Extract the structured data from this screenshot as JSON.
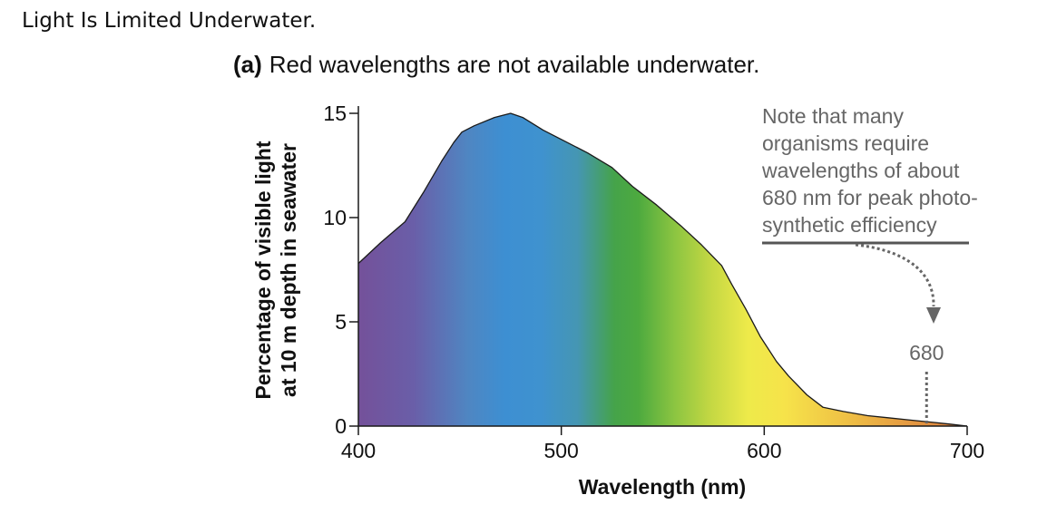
{
  "page": {
    "title": "Light Is Limited Underwater."
  },
  "figure": {
    "panel_label": "(a)",
    "subtitle": "Red wavelengths are not available underwater."
  },
  "annotation": {
    "note_lines": [
      "Note that many",
      "organisms require",
      "wavelengths of about",
      "680 nm for peak photo-",
      "synthetic efficiency"
    ],
    "marker_label": "680",
    "marker_x": 680,
    "color": "#666666"
  },
  "chart_data": {
    "type": "area",
    "xlabel": "Wavelength (nm)",
    "ylabel_lines": [
      "Percentage of visible light",
      "at 10 m depth in seawater"
    ],
    "xlim": [
      400,
      700
    ],
    "ylim": [
      0,
      15
    ],
    "xticks": [
      400,
      500,
      600,
      700
    ],
    "yticks": [
      0,
      5,
      10,
      15
    ],
    "grid": false,
    "legend": "none",
    "fill": "visible spectrum gradient (violet to red)",
    "series": [
      {
        "x": [
          400,
          411,
          423,
          432,
          441,
          447,
          451,
          457,
          467,
          475,
          481,
          491,
          501,
          513,
          525,
          535,
          547,
          559,
          569,
          579,
          584,
          591,
          598,
          606,
          612,
          621,
          629,
          639,
          651,
          661,
          671,
          681,
          691,
          700
        ],
        "y": [
          7.8,
          8.8,
          9.8,
          11.2,
          12.7,
          13.6,
          14.1,
          14.4,
          14.8,
          15.0,
          14.8,
          14.2,
          13.7,
          13.1,
          12.4,
          11.5,
          10.6,
          9.6,
          8.7,
          7.7,
          6.8,
          5.6,
          4.3,
          3.1,
          2.4,
          1.5,
          0.9,
          0.7,
          0.5,
          0.4,
          0.3,
          0.2,
          0.1,
          0.0
        ]
      }
    ]
  }
}
